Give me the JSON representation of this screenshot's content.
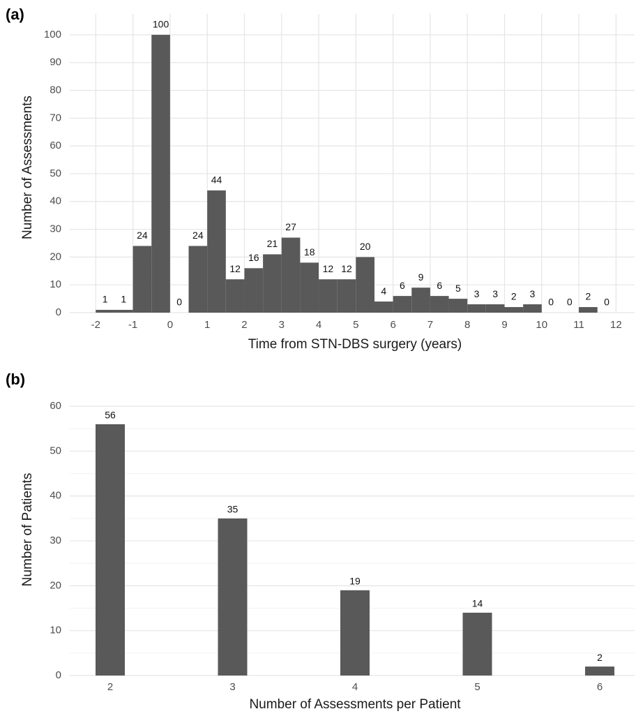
{
  "chart_data": [
    {
      "type": "histogram",
      "panel_label": "(a)",
      "xlabel": "Time from STN-DBS surgery (years)",
      "ylabel": "Number of Assessments",
      "bins": [
        -2,
        -1.5,
        -1,
        -0.5,
        0,
        0.5,
        1,
        1.5,
        2,
        2.5,
        3,
        3.5,
        4,
        4.5,
        5,
        5.5,
        6,
        6.5,
        7,
        7.5,
        8,
        8.5,
        9,
        9.5,
        10,
        10.5,
        11,
        11.5,
        12
      ],
      "counts": [
        1,
        1,
        24,
        100,
        0,
        24,
        44,
        12,
        16,
        21,
        27,
        18,
        12,
        12,
        20,
        4,
        6,
        9,
        6,
        5,
        3,
        3,
        2,
        3,
        0,
        0,
        2,
        0
      ],
      "color": "#595959",
      "xlim": [
        -2.7,
        12.5
      ],
      "xticks": [
        -2,
        -1,
        0,
        1,
        2,
        3,
        4,
        5,
        6,
        7,
        8,
        9,
        10,
        11,
        12
      ],
      "ylim": [
        0,
        105
      ],
      "yticks": [
        0,
        10,
        20,
        30,
        40,
        50,
        60,
        70,
        80,
        90,
        100
      ],
      "grid": true
    },
    {
      "type": "bar",
      "panel_label": "(b)",
      "xlabel": "Number of Assessments per Patient",
      "ylabel": "Number of Patients",
      "categories": [
        "2",
        "3",
        "4",
        "5",
        "6"
      ],
      "values": [
        56,
        35,
        19,
        14,
        2
      ],
      "color": "#595959",
      "ylim": [
        0,
        65
      ],
      "yticks": [
        0,
        10,
        20,
        30,
        40,
        50,
        60
      ],
      "grid": true,
      "minor_grid": true
    }
  ]
}
